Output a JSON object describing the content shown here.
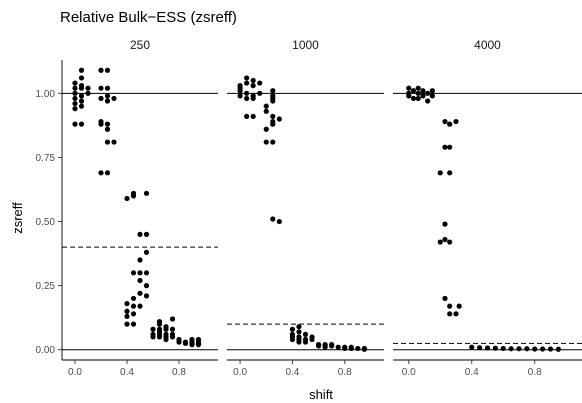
{
  "chart_data": {
    "type": "scatter",
    "title": "Relative Bulk−ESS (zsreff)",
    "xlabel": "shift",
    "ylabel": "zsreff",
    "xlim": [
      -0.1,
      1.1
    ],
    "ylim": [
      -0.04,
      1.13
    ],
    "x_ticks": [
      0.0,
      0.4,
      0.8
    ],
    "x_tick_labels": [
      "0.0",
      "0.4",
      "0.8"
    ],
    "y_ticks": [
      0.0,
      0.25,
      0.5,
      0.75,
      1.0
    ],
    "y_tick_labels": [
      "0.00",
      "0.25",
      "0.50",
      "0.75",
      "1.00"
    ],
    "grid": false,
    "reference_lines": [
      0,
      1
    ],
    "panels": [
      {
        "label": "250",
        "threshold": 0.4,
        "points": [
          [
            0.0,
            1.04
          ],
          [
            0.0,
            1.0
          ],
          [
            0.0,
            0.98
          ],
          [
            0.0,
            0.96
          ],
          [
            0.0,
            0.88
          ],
          [
            0.0,
            1.02
          ],
          [
            0.0,
            0.94
          ],
          [
            0.05,
            1.09
          ],
          [
            0.05,
            1.06
          ],
          [
            0.05,
            1.02
          ],
          [
            0.05,
            0.99
          ],
          [
            0.05,
            0.97
          ],
          [
            0.05,
            0.95
          ],
          [
            0.05,
            1.03
          ],
          [
            0.05,
            0.88
          ],
          [
            0.1,
            1.02
          ],
          [
            0.1,
            1.0
          ],
          [
            0.2,
            1.09
          ],
          [
            0.2,
            1.02
          ],
          [
            0.2,
            0.98
          ],
          [
            0.2,
            0.89
          ],
          [
            0.2,
            0.88
          ],
          [
            0.2,
            0.69
          ],
          [
            0.25,
            1.09
          ],
          [
            0.25,
            1.02
          ],
          [
            0.25,
            0.99
          ],
          [
            0.25,
            0.97
          ],
          [
            0.25,
            0.88
          ],
          [
            0.25,
            0.86
          ],
          [
            0.25,
            0.81
          ],
          [
            0.25,
            0.69
          ],
          [
            0.3,
            0.98
          ],
          [
            0.3,
            0.81
          ],
          [
            0.4,
            0.59
          ],
          [
            0.4,
            0.18
          ],
          [
            0.4,
            0.15
          ],
          [
            0.4,
            0.13
          ],
          [
            0.4,
            0.1
          ],
          [
            0.45,
            0.61
          ],
          [
            0.45,
            0.6
          ],
          [
            0.45,
            0.3
          ],
          [
            0.45,
            0.2
          ],
          [
            0.45,
            0.17
          ],
          [
            0.45,
            0.14
          ],
          [
            0.45,
            0.1
          ],
          [
            0.5,
            0.45
          ],
          [
            0.5,
            0.35
          ],
          [
            0.5,
            0.3
          ],
          [
            0.5,
            0.27
          ],
          [
            0.5,
            0.22
          ],
          [
            0.5,
            0.17
          ],
          [
            0.55,
            0.61
          ],
          [
            0.55,
            0.45
          ],
          [
            0.55,
            0.38
          ],
          [
            0.55,
            0.3
          ],
          [
            0.55,
            0.25
          ],
          [
            0.55,
            0.21
          ],
          [
            0.6,
            0.08
          ],
          [
            0.6,
            0.06
          ],
          [
            0.6,
            0.05
          ],
          [
            0.65,
            0.11
          ],
          [
            0.65,
            0.1
          ],
          [
            0.65,
            0.08
          ],
          [
            0.65,
            0.07
          ],
          [
            0.65,
            0.06
          ],
          [
            0.65,
            0.05
          ],
          [
            0.7,
            0.09
          ],
          [
            0.7,
            0.08
          ],
          [
            0.7,
            0.06
          ],
          [
            0.7,
            0.05
          ],
          [
            0.7,
            0.04
          ],
          [
            0.75,
            0.12
          ],
          [
            0.75,
            0.08
          ],
          [
            0.75,
            0.06
          ],
          [
            0.75,
            0.05
          ],
          [
            0.8,
            0.04
          ],
          [
            0.8,
            0.03
          ],
          [
            0.8,
            0.03
          ],
          [
            0.85,
            0.03
          ],
          [
            0.85,
            0.025
          ],
          [
            0.85,
            0.025
          ],
          [
            0.9,
            0.04
          ],
          [
            0.9,
            0.03
          ],
          [
            0.9,
            0.025
          ],
          [
            0.9,
            0.02
          ],
          [
            0.95,
            0.04
          ],
          [
            0.95,
            0.03
          ],
          [
            0.95,
            0.025
          ],
          [
            0.95,
            0.02
          ]
        ]
      },
      {
        "label": "1000",
        "threshold": 0.1,
        "points": [
          [
            0.0,
            1.03
          ],
          [
            0.0,
            1.02
          ],
          [
            0.0,
            1.01
          ],
          [
            0.0,
            0.99
          ],
          [
            0.05,
            1.06
          ],
          [
            0.05,
            1.04
          ],
          [
            0.05,
            1.0
          ],
          [
            0.05,
            0.98
          ],
          [
            0.05,
            0.91
          ],
          [
            0.1,
            1.05
          ],
          [
            0.1,
            1.03
          ],
          [
            0.1,
            0.99
          ],
          [
            0.1,
            0.98
          ],
          [
            0.1,
            0.91
          ],
          [
            0.15,
            1.04
          ],
          [
            0.15,
            1.0
          ],
          [
            0.2,
            0.95
          ],
          [
            0.2,
            0.93
          ],
          [
            0.2,
            0.86
          ],
          [
            0.2,
            0.81
          ],
          [
            0.25,
            1.01
          ],
          [
            0.25,
            0.99
          ],
          [
            0.25,
            0.98
          ],
          [
            0.25,
            0.97
          ],
          [
            0.25,
            0.91
          ],
          [
            0.25,
            0.89
          ],
          [
            0.25,
            0.88
          ],
          [
            0.25,
            0.81
          ],
          [
            0.25,
            0.51
          ],
          [
            0.3,
            0.9
          ],
          [
            0.3,
            0.5
          ],
          [
            0.4,
            0.08
          ],
          [
            0.4,
            0.06
          ],
          [
            0.4,
            0.05
          ],
          [
            0.4,
            0.04
          ],
          [
            0.45,
            0.09
          ],
          [
            0.45,
            0.07
          ],
          [
            0.45,
            0.05
          ],
          [
            0.45,
            0.04
          ],
          [
            0.45,
            0.03
          ],
          [
            0.5,
            0.06
          ],
          [
            0.5,
            0.04
          ],
          [
            0.5,
            0.03
          ],
          [
            0.55,
            0.05
          ],
          [
            0.55,
            0.04
          ],
          [
            0.6,
            0.02
          ],
          [
            0.6,
            0.015
          ],
          [
            0.65,
            0.02
          ],
          [
            0.65,
            0.015
          ],
          [
            0.65,
            0.01
          ],
          [
            0.7,
            0.02
          ],
          [
            0.7,
            0.015
          ],
          [
            0.75,
            0.01
          ],
          [
            0.8,
            0.01
          ],
          [
            0.8,
            0.005
          ],
          [
            0.85,
            0.01
          ],
          [
            0.85,
            0.005
          ],
          [
            0.9,
            0.005
          ],
          [
            0.95,
            0.005
          ],
          [
            0.95,
            0.002
          ]
        ]
      },
      {
        "label": "4000",
        "threshold": 0.025,
        "points": [
          [
            0.0,
            1.02
          ],
          [
            0.0,
            1.0
          ],
          [
            0.0,
            0.99
          ],
          [
            0.03,
            1.01
          ],
          [
            0.03,
            0.98
          ],
          [
            0.06,
            1.02
          ],
          [
            0.06,
            1.0
          ],
          [
            0.06,
            0.98
          ],
          [
            0.09,
            1.01
          ],
          [
            0.09,
            0.99
          ],
          [
            0.12,
            1.0
          ],
          [
            0.12,
            0.97
          ],
          [
            0.15,
            1.01
          ],
          [
            0.15,
            0.99
          ],
          [
            0.2,
            0.69
          ],
          [
            0.2,
            0.42
          ],
          [
            0.23,
            0.89
          ],
          [
            0.23,
            0.79
          ],
          [
            0.23,
            0.49
          ],
          [
            0.23,
            0.43
          ],
          [
            0.23,
            0.2
          ],
          [
            0.26,
            0.88
          ],
          [
            0.26,
            0.79
          ],
          [
            0.26,
            0.69
          ],
          [
            0.26,
            0.42
          ],
          [
            0.26,
            0.17
          ],
          [
            0.26,
            0.14
          ],
          [
            0.3,
            0.89
          ],
          [
            0.3,
            0.14
          ],
          [
            0.32,
            0.17
          ],
          [
            0.4,
            0.01
          ],
          [
            0.45,
            0.008
          ],
          [
            0.5,
            0.007
          ],
          [
            0.55,
            0.006
          ],
          [
            0.6,
            0.005
          ],
          [
            0.65,
            0.004
          ],
          [
            0.7,
            0.004
          ],
          [
            0.75,
            0.004
          ],
          [
            0.8,
            0.003
          ],
          [
            0.85,
            0.003
          ],
          [
            0.9,
            0.003
          ],
          [
            0.95,
            0.002
          ]
        ]
      }
    ]
  }
}
